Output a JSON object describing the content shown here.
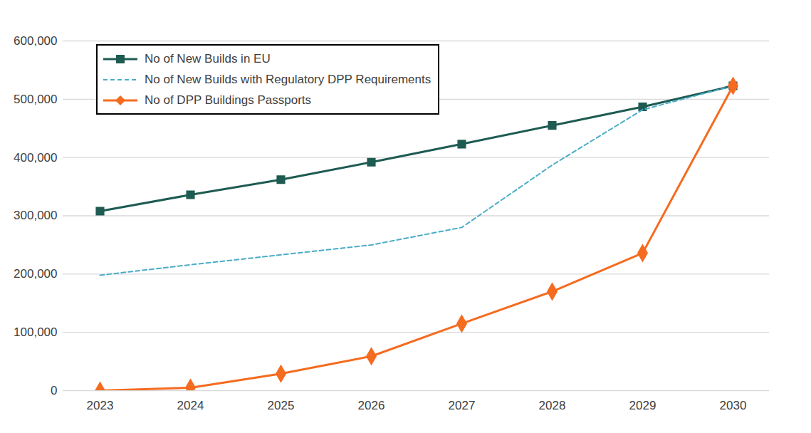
{
  "chart_data": {
    "type": "line",
    "categories": [
      "2023",
      "2024",
      "2025",
      "2026",
      "2027",
      "2028",
      "2029",
      "2030"
    ],
    "series": [
      {
        "name": "No of New Builds in EU",
        "color": "#1e5b52",
        "marker": "square",
        "line_style": "solid",
        "values": [
          308000,
          336000,
          362000,
          392000,
          423000,
          455000,
          487000,
          523000
        ]
      },
      {
        "name": "No of New Builds with Regulatory DPP Requirements",
        "color": "#4bacc6",
        "marker": "none",
        "line_style": "dashed",
        "values": [
          198000,
          216000,
          233000,
          250000,
          280000,
          387000,
          482000,
          523000
        ]
      },
      {
        "name": "No of DPP Buildings Passports",
        "color": "#f56b1f",
        "marker": "diamond",
        "line_style": "solid",
        "values": [
          0,
          5000,
          29000,
          59000,
          115000,
          170000,
          236000,
          523000
        ]
      }
    ],
    "ylim": [
      0,
      600000
    ],
    "yticks": [
      0,
      {
        "value": 100000,
        "label": "100,000"
      },
      {
        "value": 200000,
        "label": "200,000"
      },
      {
        "value": 300000,
        "label": "300,000"
      },
      {
        "value": 400000,
        "label": "400,000"
      },
      {
        "value": 500000,
        "label": "500,000"
      },
      {
        "value": 600000,
        "label": "600,000"
      }
    ],
    "grid": true,
    "legend": "top-left"
  }
}
